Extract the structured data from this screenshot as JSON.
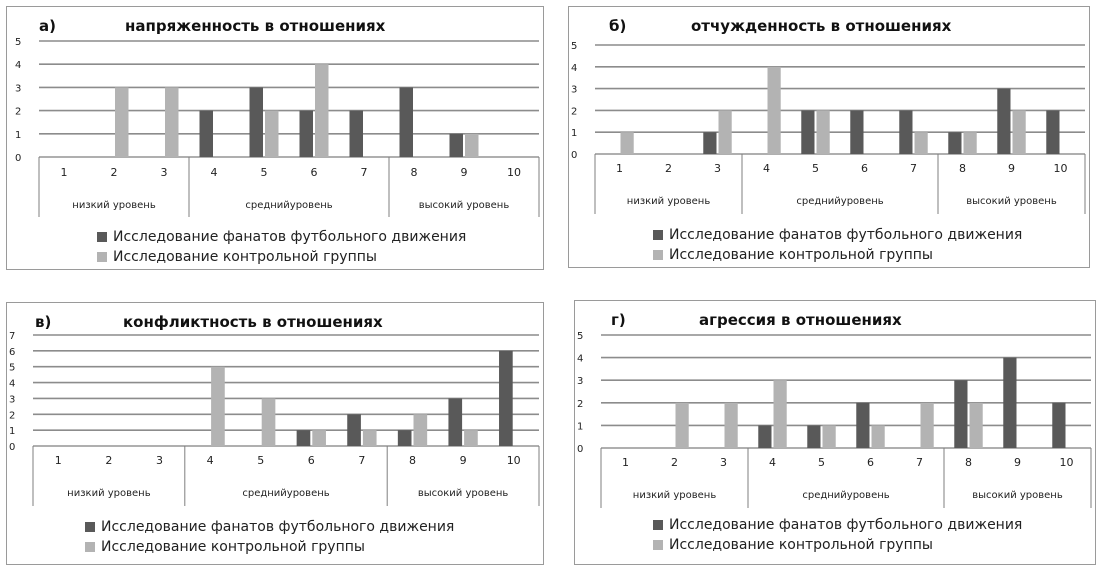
{
  "colors": {
    "fans": "#595959",
    "control": "#b3b3b3"
  },
  "chart_data": [
    {
      "type": "bar",
      "letter": "а)",
      "title": "напряженность в отношениях",
      "categories": [
        "1",
        "2",
        "3",
        "4",
        "5",
        "6",
        "7",
        "8",
        "9",
        "10"
      ],
      "groups": [
        {
          "label": "низкий уровень",
          "categories": [
            "1",
            "2",
            "3"
          ]
        },
        {
          "label": "среднийуровень",
          "categories": [
            "4",
            "5",
            "6",
            "7"
          ]
        },
        {
          "label": "высокий уровень",
          "categories": [
            "8",
            "9",
            "10"
          ]
        }
      ],
      "series": [
        {
          "name": "Исследование фанатов футбольного движения",
          "values": [
            0,
            0,
            0,
            2,
            3,
            2,
            2,
            3,
            1,
            0
          ]
        },
        {
          "name": "Исследование контрольной группы",
          "values": [
            0,
            3,
            3,
            0,
            2,
            4,
            0,
            0,
            1,
            0
          ]
        }
      ],
      "ylim": [
        0,
        5
      ],
      "yticks": [
        "0",
        "1",
        "2",
        "3",
        "4",
        "5"
      ],
      "grid": true,
      "legend": "bottom"
    },
    {
      "type": "bar",
      "letter": "б)",
      "title": "отчужденность в отношениях",
      "categories": [
        "1",
        "2",
        "3",
        "4",
        "5",
        "6",
        "7",
        "8",
        "9",
        "10"
      ],
      "groups": [
        {
          "label": "низкий уровень",
          "categories": [
            "1",
            "2",
            "3"
          ]
        },
        {
          "label": "среднийуровень",
          "categories": [
            "4",
            "5",
            "6",
            "7"
          ]
        },
        {
          "label": "высокий уровень",
          "categories": [
            "8",
            "9",
            "10"
          ]
        }
      ],
      "series": [
        {
          "name": "Исследование фанатов футбольного движения",
          "values": [
            0,
            0,
            1,
            0,
            2,
            2,
            2,
            1,
            3,
            2
          ]
        },
        {
          "name": "Исследование контрольной группы",
          "values": [
            1,
            0,
            2,
            4,
            2,
            0,
            1,
            1,
            2,
            0
          ]
        }
      ],
      "ylim": [
        0,
        5
      ],
      "yticks": [
        "0",
        "1",
        "2",
        "3",
        "4",
        "5"
      ],
      "grid": true,
      "legend": "bottom"
    },
    {
      "type": "bar",
      "letter": "в)",
      "title": "конфликтность в отношениях",
      "categories": [
        "1",
        "2",
        "3",
        "4",
        "5",
        "6",
        "7",
        "8",
        "9",
        "10"
      ],
      "groups": [
        {
          "label": "низкий уровень",
          "categories": [
            "1",
            "2",
            "3"
          ]
        },
        {
          "label": "среднийуровень",
          "categories": [
            "4",
            "5",
            "6",
            "7"
          ]
        },
        {
          "label": "высокий уровень",
          "categories": [
            "8",
            "9",
            "10"
          ]
        }
      ],
      "series": [
        {
          "name": "Исследование фанатов футбольного движения",
          "values": [
            0,
            0,
            0,
            0,
            0,
            1,
            2,
            1,
            3,
            6
          ]
        },
        {
          "name": "Исследование контрольной группы",
          "values": [
            0,
            0,
            0,
            5,
            3,
            1,
            1,
            2,
            1,
            0
          ]
        }
      ],
      "ylim": [
        0,
        7
      ],
      "yticks": [
        "0",
        "1",
        "2",
        "3",
        "4",
        "5",
        "6",
        "7"
      ],
      "grid": true,
      "legend": "bottom"
    },
    {
      "type": "bar",
      "letter": "г)",
      "title": "агрессия в отношениях",
      "categories": [
        "1",
        "2",
        "3",
        "4",
        "5",
        "6",
        "7",
        "8",
        "9",
        "10"
      ],
      "groups": [
        {
          "label": "низкий уровень",
          "categories": [
            "1",
            "2",
            "3"
          ]
        },
        {
          "label": "среднийуровень",
          "categories": [
            "4",
            "5",
            "6",
            "7"
          ]
        },
        {
          "label": "высокий уровень",
          "categories": [
            "8",
            "9",
            "10"
          ]
        }
      ],
      "series": [
        {
          "name": "Исследование фанатов футбольного движения",
          "values": [
            0,
            0,
            0,
            1,
            1,
            2,
            0,
            3,
            4,
            2
          ]
        },
        {
          "name": "Исследование контрольной группы",
          "values": [
            0,
            2,
            2,
            3,
            1,
            1,
            2,
            2,
            0,
            0
          ]
        }
      ],
      "ylim": [
        0,
        5
      ],
      "yticks": [
        "0",
        "1",
        "2",
        "3",
        "4",
        "5"
      ],
      "grid": true,
      "legend": "bottom"
    }
  ]
}
